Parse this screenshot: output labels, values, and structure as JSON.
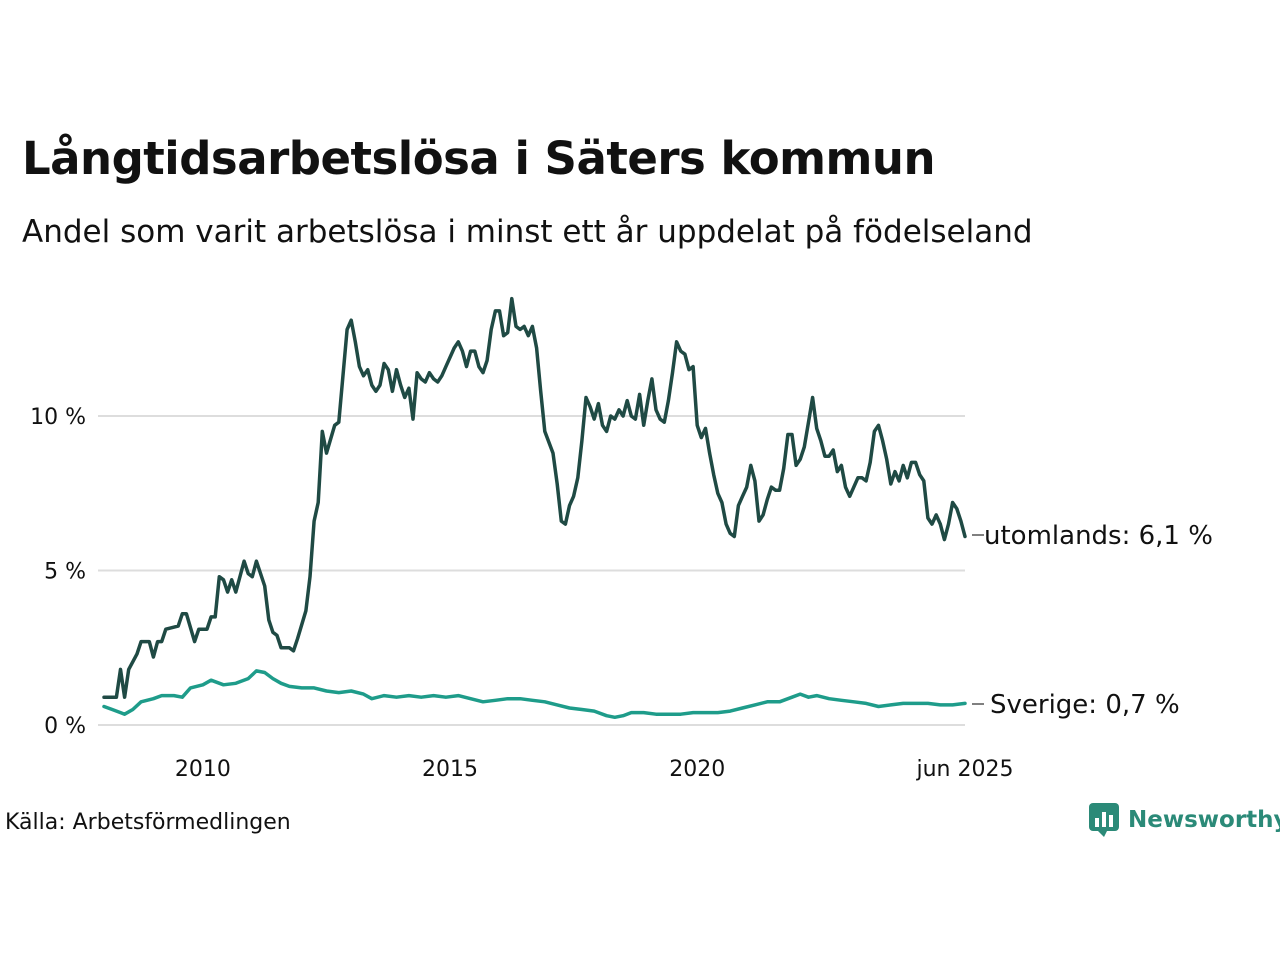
{
  "title": "Långtidsarbetslösa i Säters kommun",
  "subtitle": "Andel som varit arbetslösa i minst ett år uppdelat på födelseland",
  "source": "Källa: Arbetsförmedlingen",
  "brand": "Newsworthy",
  "colors": {
    "utomlands": "#1f4a44",
    "sverige": "#1e9c8a",
    "grid": "#dddddd",
    "brand": "#2b8a78"
  },
  "chart_data": {
    "type": "line",
    "x_start": "2008-01",
    "x_end": "2025-06",
    "ylim": [
      0,
      14
    ],
    "y_ticks": [
      {
        "value": 0,
        "label": "0 %"
      },
      {
        "value": 5,
        "label": "5 %"
      },
      {
        "value": 10,
        "label": "10 %"
      }
    ],
    "x_ticks": [
      {
        "date": "2010-01",
        "label": "2010"
      },
      {
        "date": "2015-01",
        "label": "2015"
      },
      {
        "date": "2020-01",
        "label": "2020"
      },
      {
        "date": "2025-06",
        "label": "jun 2025"
      }
    ],
    "series": [
      {
        "key": "utomlands",
        "end_label": "utomlands: 6,1 %",
        "points": [
          [
            "2008-01",
            0.9
          ],
          [
            "2008-04",
            0.9
          ],
          [
            "2008-05",
            1.8
          ],
          [
            "2008-06",
            0.9
          ],
          [
            "2008-07",
            1.8
          ],
          [
            "2008-09",
            2.3
          ],
          [
            "2008-10",
            2.7
          ],
          [
            "2008-12",
            2.7
          ],
          [
            "2009-01",
            2.2
          ],
          [
            "2009-02",
            2.7
          ],
          [
            "2009-03",
            2.7
          ],
          [
            "2009-04",
            3.1
          ],
          [
            "2009-07",
            3.2
          ],
          [
            "2009-08",
            3.6
          ],
          [
            "2009-09",
            3.6
          ],
          [
            "2009-11",
            2.7
          ],
          [
            "2009-12",
            3.1
          ],
          [
            "2010-02",
            3.1
          ],
          [
            "2010-03",
            3.5
          ],
          [
            "2010-04",
            3.5
          ],
          [
            "2010-05",
            4.8
          ],
          [
            "2010-06",
            4.7
          ],
          [
            "2010-07",
            4.3
          ],
          [
            "2010-08",
            4.7
          ],
          [
            "2010-09",
            4.3
          ],
          [
            "2010-11",
            5.3
          ],
          [
            "2010-12",
            4.9
          ],
          [
            "2011-01",
            4.8
          ],
          [
            "2011-02",
            5.3
          ],
          [
            "2011-04",
            4.5
          ],
          [
            "2011-05",
            3.4
          ],
          [
            "2011-06",
            3.0
          ],
          [
            "2011-07",
            2.9
          ],
          [
            "2011-08",
            2.5
          ],
          [
            "2011-10",
            2.5
          ],
          [
            "2011-11",
            2.4
          ],
          [
            "2011-12",
            2.8
          ],
          [
            "2012-02",
            3.7
          ],
          [
            "2012-03",
            4.8
          ],
          [
            "2012-04",
            6.6
          ],
          [
            "2012-05",
            7.2
          ],
          [
            "2012-06",
            9.5
          ],
          [
            "2012-07",
            8.8
          ],
          [
            "2012-09",
            9.7
          ],
          [
            "2012-10",
            9.8
          ],
          [
            "2012-12",
            12.8
          ],
          [
            "2013-01",
            13.1
          ],
          [
            "2013-02",
            12.4
          ],
          [
            "2013-03",
            11.6
          ],
          [
            "2013-04",
            11.3
          ],
          [
            "2013-05",
            11.5
          ],
          [
            "2013-06",
            11.0
          ],
          [
            "2013-07",
            10.8
          ],
          [
            "2013-08",
            11.0
          ],
          [
            "2013-09",
            11.7
          ],
          [
            "2013-10",
            11.5
          ],
          [
            "2013-11",
            10.8
          ],
          [
            "2013-12",
            11.5
          ],
          [
            "2014-01",
            11.0
          ],
          [
            "2014-02",
            10.6
          ],
          [
            "2014-03",
            10.9
          ],
          [
            "2014-04",
            9.9
          ],
          [
            "2014-05",
            11.4
          ],
          [
            "2014-06",
            11.2
          ],
          [
            "2014-07",
            11.1
          ],
          [
            "2014-08",
            11.4
          ],
          [
            "2014-09",
            11.2
          ],
          [
            "2014-10",
            11.1
          ],
          [
            "2014-11",
            11.3
          ],
          [
            "2014-12",
            11.6
          ],
          [
            "2015-02",
            12.2
          ],
          [
            "2015-03",
            12.4
          ],
          [
            "2015-04",
            12.1
          ],
          [
            "2015-05",
            11.6
          ],
          [
            "2015-06",
            12.1
          ],
          [
            "2015-07",
            12.1
          ],
          [
            "2015-08",
            11.6
          ],
          [
            "2015-09",
            11.4
          ],
          [
            "2015-10",
            11.8
          ],
          [
            "2015-11",
            12.8
          ],
          [
            "2015-12",
            13.4
          ],
          [
            "2016-01",
            13.4
          ],
          [
            "2016-02",
            12.6
          ],
          [
            "2016-03",
            12.7
          ],
          [
            "2016-04",
            13.8
          ],
          [
            "2016-05",
            12.9
          ],
          [
            "2016-06",
            12.8
          ],
          [
            "2016-07",
            12.9
          ],
          [
            "2016-08",
            12.6
          ],
          [
            "2016-09",
            12.9
          ],
          [
            "2016-10",
            12.2
          ],
          [
            "2016-11",
            10.8
          ],
          [
            "2016-12",
            9.5
          ],
          [
            "2017-02",
            8.8
          ],
          [
            "2017-03",
            7.8
          ],
          [
            "2017-04",
            6.6
          ],
          [
            "2017-05",
            6.5
          ],
          [
            "2017-06",
            7.1
          ],
          [
            "2017-07",
            7.4
          ],
          [
            "2017-08",
            8.0
          ],
          [
            "2017-09",
            9.2
          ],
          [
            "2017-10",
            10.6
          ],
          [
            "2017-11",
            10.3
          ],
          [
            "2017-12",
            9.9
          ],
          [
            "2018-01",
            10.4
          ],
          [
            "2018-02",
            9.7
          ],
          [
            "2018-03",
            9.5
          ],
          [
            "2018-04",
            10.0
          ],
          [
            "2018-05",
            9.9
          ],
          [
            "2018-06",
            10.2
          ],
          [
            "2018-07",
            10.0
          ],
          [
            "2018-08",
            10.5
          ],
          [
            "2018-09",
            10.0
          ],
          [
            "2018-10",
            9.9
          ],
          [
            "2018-11",
            10.7
          ],
          [
            "2018-12",
            9.7
          ],
          [
            "2019-01",
            10.5
          ],
          [
            "2019-02",
            11.2
          ],
          [
            "2019-03",
            10.2
          ],
          [
            "2019-04",
            9.9
          ],
          [
            "2019-05",
            9.8
          ],
          [
            "2019-06",
            10.5
          ],
          [
            "2019-07",
            11.4
          ],
          [
            "2019-08",
            12.4
          ],
          [
            "2019-09",
            12.1
          ],
          [
            "2019-10",
            12.0
          ],
          [
            "2019-11",
            11.5
          ],
          [
            "2019-12",
            11.6
          ],
          [
            "2020-01",
            9.7
          ],
          [
            "2020-02",
            9.3
          ],
          [
            "2020-03",
            9.6
          ],
          [
            "2020-04",
            8.8
          ],
          [
            "2020-05",
            8.1
          ],
          [
            "2020-06",
            7.5
          ],
          [
            "2020-07",
            7.2
          ],
          [
            "2020-08",
            6.5
          ],
          [
            "2020-09",
            6.2
          ],
          [
            "2020-10",
            6.1
          ],
          [
            "2020-11",
            7.1
          ],
          [
            "2020-12",
            7.4
          ],
          [
            "2021-01",
            7.7
          ],
          [
            "2021-02",
            8.4
          ],
          [
            "2021-03",
            7.9
          ],
          [
            "2021-04",
            6.6
          ],
          [
            "2021-05",
            6.8
          ],
          [
            "2021-06",
            7.3
          ],
          [
            "2021-07",
            7.7
          ],
          [
            "2021-08",
            7.6
          ],
          [
            "2021-09",
            7.6
          ],
          [
            "2021-10",
            8.3
          ],
          [
            "2021-11",
            9.4
          ],
          [
            "2021-12",
            9.4
          ],
          [
            "2022-01",
            8.4
          ],
          [
            "2022-02",
            8.6
          ],
          [
            "2022-03",
            9.0
          ],
          [
            "2022-04",
            9.8
          ],
          [
            "2022-05",
            10.6
          ],
          [
            "2022-06",
            9.6
          ],
          [
            "2022-07",
            9.2
          ],
          [
            "2022-08",
            8.7
          ],
          [
            "2022-09",
            8.7
          ],
          [
            "2022-10",
            8.9
          ],
          [
            "2022-11",
            8.2
          ],
          [
            "2022-12",
            8.4
          ],
          [
            "2023-01",
            7.7
          ],
          [
            "2023-02",
            7.4
          ],
          [
            "2023-03",
            7.7
          ],
          [
            "2023-04",
            8.0
          ],
          [
            "2023-05",
            8.0
          ],
          [
            "2023-06",
            7.9
          ],
          [
            "2023-07",
            8.5
          ],
          [
            "2023-08",
            9.5
          ],
          [
            "2023-09",
            9.7
          ],
          [
            "2023-10",
            9.2
          ],
          [
            "2023-11",
            8.6
          ],
          [
            "2023-12",
            7.8
          ],
          [
            "2024-01",
            8.2
          ],
          [
            "2024-02",
            7.9
          ],
          [
            "2024-03",
            8.4
          ],
          [
            "2024-04",
            8.0
          ],
          [
            "2024-05",
            8.5
          ],
          [
            "2024-06",
            8.5
          ],
          [
            "2024-07",
            8.1
          ],
          [
            "2024-08",
            7.9
          ],
          [
            "2024-09",
            6.7
          ],
          [
            "2024-10",
            6.5
          ],
          [
            "2024-11",
            6.8
          ],
          [
            "2024-12",
            6.5
          ],
          [
            "2025-01",
            6.0
          ],
          [
            "2025-02",
            6.5
          ],
          [
            "2025-03",
            7.2
          ],
          [
            "2025-04",
            7.0
          ],
          [
            "2025-05",
            6.6
          ],
          [
            "2025-06",
            6.1
          ]
        ]
      },
      {
        "key": "sverige",
        "end_label": "Sverige: 0,7 %",
        "points": [
          [
            "2008-01",
            0.6
          ],
          [
            "2008-03",
            0.5
          ],
          [
            "2008-05",
            0.4
          ],
          [
            "2008-06",
            0.35
          ],
          [
            "2008-08",
            0.5
          ],
          [
            "2008-10",
            0.75
          ],
          [
            "2009-01",
            0.85
          ],
          [
            "2009-03",
            0.95
          ],
          [
            "2009-06",
            0.95
          ],
          [
            "2009-08",
            0.9
          ],
          [
            "2009-10",
            1.2
          ],
          [
            "2010-01",
            1.3
          ],
          [
            "2010-03",
            1.45
          ],
          [
            "2010-06",
            1.3
          ],
          [
            "2010-09",
            1.35
          ],
          [
            "2010-12",
            1.5
          ],
          [
            "2011-02",
            1.75
          ],
          [
            "2011-04",
            1.7
          ],
          [
            "2011-06",
            1.5
          ],
          [
            "2011-08",
            1.35
          ],
          [
            "2011-10",
            1.25
          ],
          [
            "2012-01",
            1.2
          ],
          [
            "2012-04",
            1.2
          ],
          [
            "2012-07",
            1.1
          ],
          [
            "2012-10",
            1.05
          ],
          [
            "2013-01",
            1.1
          ],
          [
            "2013-04",
            1.0
          ],
          [
            "2013-06",
            0.85
          ],
          [
            "2013-09",
            0.95
          ],
          [
            "2013-12",
            0.9
          ],
          [
            "2014-03",
            0.95
          ],
          [
            "2014-06",
            0.9
          ],
          [
            "2014-09",
            0.95
          ],
          [
            "2014-12",
            0.9
          ],
          [
            "2015-03",
            0.95
          ],
          [
            "2015-06",
            0.85
          ],
          [
            "2015-09",
            0.75
          ],
          [
            "2015-12",
            0.8
          ],
          [
            "2016-03",
            0.85
          ],
          [
            "2016-06",
            0.85
          ],
          [
            "2016-09",
            0.8
          ],
          [
            "2016-12",
            0.75
          ],
          [
            "2017-03",
            0.65
          ],
          [
            "2017-06",
            0.55
          ],
          [
            "2017-09",
            0.5
          ],
          [
            "2017-12",
            0.45
          ],
          [
            "2018-03",
            0.3
          ],
          [
            "2018-05",
            0.25
          ],
          [
            "2018-07",
            0.3
          ],
          [
            "2018-09",
            0.4
          ],
          [
            "2018-12",
            0.4
          ],
          [
            "2019-03",
            0.35
          ],
          [
            "2019-06",
            0.35
          ],
          [
            "2019-09",
            0.35
          ],
          [
            "2019-12",
            0.4
          ],
          [
            "2020-03",
            0.4
          ],
          [
            "2020-06",
            0.4
          ],
          [
            "2020-09",
            0.45
          ],
          [
            "2020-12",
            0.55
          ],
          [
            "2021-03",
            0.65
          ],
          [
            "2021-06",
            0.75
          ],
          [
            "2021-09",
            0.75
          ],
          [
            "2021-12",
            0.9
          ],
          [
            "2022-02",
            1.0
          ],
          [
            "2022-04",
            0.9
          ],
          [
            "2022-06",
            0.95
          ],
          [
            "2022-09",
            0.85
          ],
          [
            "2022-12",
            0.8
          ],
          [
            "2023-03",
            0.75
          ],
          [
            "2023-06",
            0.7
          ],
          [
            "2023-09",
            0.6
          ],
          [
            "2023-12",
            0.65
          ],
          [
            "2024-03",
            0.7
          ],
          [
            "2024-06",
            0.7
          ],
          [
            "2024-09",
            0.7
          ],
          [
            "2024-12",
            0.65
          ],
          [
            "2025-03",
            0.65
          ],
          [
            "2025-06",
            0.7
          ]
        ]
      }
    ]
  }
}
